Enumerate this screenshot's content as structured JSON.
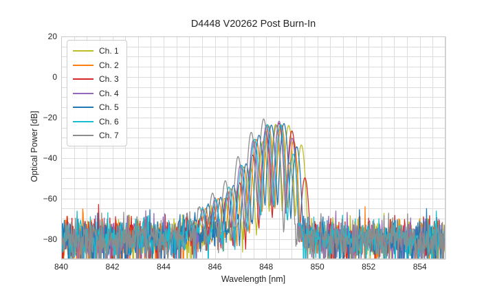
{
  "figure": {
    "background": "#ffffff",
    "text_color": "#262626"
  },
  "chart_data": {
    "type": "line",
    "title": "D4448 V20262 Post Burn-In",
    "xlabel": "Wavelength [nm]",
    "ylabel": "Optical Power [dB]",
    "xlim": [
      840,
      855
    ],
    "ylim": [
      -90,
      20
    ],
    "xticks": [
      840,
      842,
      844,
      846,
      848,
      850,
      852,
      854
    ],
    "yticks": [
      20,
      0,
      -20,
      -40,
      -60,
      -80
    ],
    "grid": {
      "on": true,
      "color": "#dcdcdc",
      "x_step_nm": 0.5,
      "y_step_db": 5,
      "spine_color": "#c9c9c9"
    },
    "legend": {
      "position": "upper-left"
    },
    "series": [
      {
        "name": "Ch. 1",
        "color": "#bcbd22",
        "peak_nm": 848.58,
        "peak_db": -22,
        "mode_spacing_nm": 0.5,
        "phase": 0.1,
        "seed": 101
      },
      {
        "name": "Ch. 2",
        "color": "#ff7f0e",
        "peak_nm": 848.3,
        "peak_db": -22,
        "mode_spacing_nm": 0.49,
        "phase": 0.24,
        "seed": 202
      },
      {
        "name": "Ch. 3",
        "color": "#d62728",
        "peak_nm": 848.48,
        "peak_db": -22,
        "mode_spacing_nm": 0.51,
        "phase": 0.38,
        "seed": 303
      },
      {
        "name": "Ch. 4",
        "color": "#9467bd",
        "peak_nm": 848.24,
        "peak_db": -22,
        "mode_spacing_nm": 0.5,
        "phase": 0.03,
        "seed": 404
      },
      {
        "name": "Ch. 5",
        "color": "#1f77b4",
        "peak_nm": 848.34,
        "peak_db": -22,
        "mode_spacing_nm": 0.495,
        "phase": 0.31,
        "seed": 505
      },
      {
        "name": "Ch. 6",
        "color": "#17becf",
        "peak_nm": 848.18,
        "peak_db": -22,
        "mode_spacing_nm": 0.505,
        "phase": 0.17,
        "seed": 606
      },
      {
        "name": "Ch. 7",
        "color": "#8c8c8c",
        "peak_nm": 847.94,
        "peak_db": -22,
        "mode_spacing_nm": 0.5,
        "phase": 0.44,
        "seed": 707
      }
    ],
    "envelope_rel_nm_db": [
      [
        -3.6,
        -79
      ],
      [
        -3.15,
        -72
      ],
      [
        -2.75,
        -66
      ],
      [
        -2.4,
        -62
      ],
      [
        -2.05,
        -59
      ],
      [
        -1.8,
        -57
      ],
      [
        -1.5,
        -51
      ],
      [
        -1.2,
        -44
      ],
      [
        -0.9,
        -36
      ],
      [
        -0.6,
        -29
      ],
      [
        -0.3,
        -24
      ],
      [
        0.0,
        -22
      ],
      [
        0.3,
        -22.6
      ],
      [
        0.55,
        -25.5
      ],
      [
        0.78,
        -31
      ],
      [
        0.95,
        -41
      ],
      [
        1.08,
        -55
      ],
      [
        1.2,
        -72
      ],
      [
        1.3,
        -85
      ]
    ],
    "mode_sigma_nm": 0.055,
    "noise_floor": {
      "mean_db": -79.5,
      "sigma_db": 4.8,
      "sample_step_nm": 0.02,
      "dropout_prob": 0.06
    }
  }
}
